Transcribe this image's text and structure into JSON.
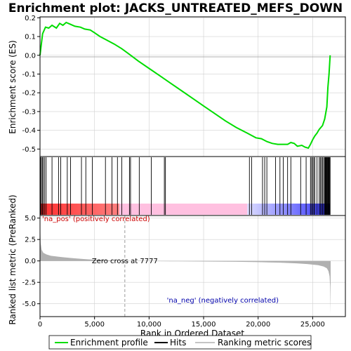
{
  "chart_data": {
    "type": "line",
    "title": "Enrichment plot: JACKS_UNTREATED_MEFS_DOWN",
    "es_ylabel": "Enrichment score (ES)",
    "rank_ylabel": "Ranked list metric (PreRanked)",
    "xlabel": "Rank in Ordered Dataset",
    "x_ticks": [
      0,
      5000,
      10000,
      15000,
      20000,
      25000
    ],
    "x_tick_labels": [
      "0",
      "5,000",
      "10,000",
      "15,000",
      "20,000",
      "25,000"
    ],
    "xlim": [
      0,
      28000
    ],
    "es_ylim": [
      -0.54,
      0.205
    ],
    "es_ticks": [
      0.2,
      0.1,
      0.0,
      -0.1,
      -0.2,
      -0.3,
      -0.4,
      -0.5
    ],
    "es_tick_labels": [
      "0.2",
      "0.1",
      "0.0",
      "-0.1",
      "-0.2",
      "-0.3",
      "-0.4",
      "-0.5"
    ],
    "rank_ylim": [
      -6.5,
      5.3
    ],
    "rank_ticks": [
      5.0,
      2.5,
      0.0,
      -2.5,
      -5.0
    ],
    "rank_tick_labels": [
      "5.0",
      "2.5",
      "0.0",
      "-2.5",
      "-5.0"
    ],
    "zero_cross_rank": 7777,
    "zero_cross_label": "Zero cross at 7777",
    "pos_label": "'na_pos' (positively correlated)",
    "neg_label": "'na_neg' (negatively correlated)",
    "colors": {
      "es_line": "#00dd00",
      "hits": "#000000",
      "metric_fill": "#b0b0b0",
      "pos_text": "#cc0000",
      "neg_text": "#0000aa",
      "grid": "#d0d0d0",
      "zero_cross_line": "#999999"
    },
    "legend": {
      "position": "bottom",
      "items": [
        {
          "label": "Enrichment profile",
          "style": "line-green"
        },
        {
          "label": "Hits",
          "style": "line-black"
        },
        {
          "label": "Ranking metric scores",
          "style": "line-gray"
        }
      ]
    },
    "es_profile": {
      "x": [
        0,
        120,
        240,
        500,
        800,
        1100,
        1500,
        1800,
        2100,
        2400,
        2800,
        3200,
        3700,
        4100,
        4600,
        5000,
        5500,
        6000,
        6800,
        7500,
        8200,
        9000,
        10000,
        11000,
        12000,
        13000,
        14000,
        15000,
        16000,
        17000,
        18000,
        19000,
        19800,
        20300,
        20800,
        21300,
        21800,
        22300,
        22700,
        23000,
        23300,
        23600,
        24000,
        24300,
        24600,
        24800,
        25000,
        25200,
        25400,
        25600,
        25900,
        26100,
        26300,
        26400,
        26500,
        26600
      ],
      "y": [
        0.0,
        0.06,
        0.115,
        0.15,
        0.145,
        0.16,
        0.145,
        0.17,
        0.16,
        0.175,
        0.165,
        0.155,
        0.15,
        0.14,
        0.135,
        0.12,
        0.1,
        0.085,
        0.06,
        0.035,
        0.005,
        -0.03,
        -0.07,
        -0.11,
        -0.15,
        -0.19,
        -0.23,
        -0.27,
        -0.31,
        -0.35,
        -0.385,
        -0.415,
        -0.44,
        -0.445,
        -0.46,
        -0.47,
        -0.475,
        -0.475,
        -0.475,
        -0.465,
        -0.47,
        -0.485,
        -0.48,
        -0.49,
        -0.495,
        -0.475,
        -0.45,
        -0.43,
        -0.415,
        -0.395,
        -0.375,
        -0.34,
        -0.275,
        -0.17,
        -0.1,
        0.0
      ]
    },
    "hits": [
      40,
      120,
      210,
      300,
      430,
      560,
      1100,
      1700,
      1900,
      2500,
      2800,
      3800,
      4200,
      4800,
      6000,
      6600,
      7100,
      7500,
      8200,
      8300,
      9100,
      10200,
      11400,
      11500,
      19200,
      19400,
      20400,
      20600,
      20800,
      21600,
      22000,
      22300,
      22700,
      23000,
      23900,
      24400,
      24800,
      24900,
      25000,
      25100,
      25200,
      25400,
      25600,
      25700,
      25800,
      25900,
      26000,
      26100,
      26150,
      26200,
      26250,
      26300,
      26350,
      26400,
      26450,
      26500,
      26550,
      26600
    ],
    "metric": {
      "x": [
        0,
        60,
        150,
        300,
        600,
        1000,
        2000,
        3000,
        4000,
        5000,
        6000,
        7000,
        7777,
        9000,
        12000,
        15000,
        18000,
        20000,
        22000,
        23500,
        24500,
        25500,
        26000,
        26300,
        26450,
        26550,
        26600,
        26650
      ],
      "y": [
        5.0,
        2.1,
        1.3,
        0.95,
        0.75,
        0.6,
        0.45,
        0.33,
        0.22,
        0.14,
        0.08,
        0.03,
        0.0,
        -0.02,
        -0.04,
        -0.07,
        -0.1,
        -0.14,
        -0.2,
        -0.28,
        -0.36,
        -0.5,
        -0.65,
        -0.85,
        -1.2,
        -1.8,
        -3.0,
        -6.2
      ]
    }
  }
}
